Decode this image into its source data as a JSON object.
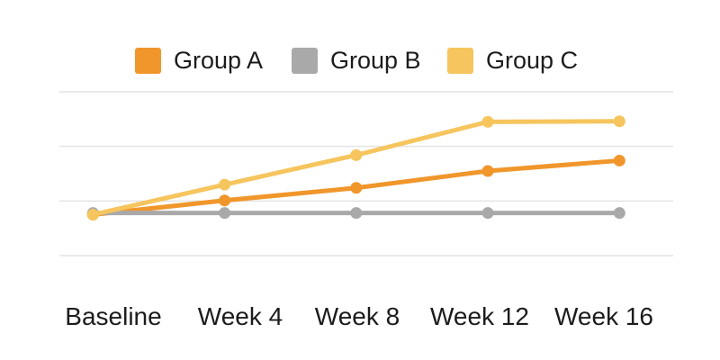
{
  "chart_data": {
    "type": "line",
    "title": "",
    "xlabel": "",
    "ylabel": "",
    "categories": [
      "Baseline",
      "Week 4",
      "Week 8",
      "Week 12",
      "Week 16"
    ],
    "series": [
      {
        "name": "Group A",
        "color": "#F0962B",
        "values": [
          7.5,
          10.1,
          12.4,
          15.5,
          17.4
        ]
      },
      {
        "name": "Group B",
        "color": "#A9A9A9",
        "values": [
          7.8,
          7.8,
          7.8,
          7.8,
          7.8
        ]
      },
      {
        "name": "Group C",
        "color": "#F6C55E",
        "values": [
          7.5,
          13.0,
          18.4,
          24.5,
          24.6
        ]
      }
    ],
    "ylim": [
      0,
      30
    ],
    "gridline_values": [
      0,
      10,
      20,
      30
    ],
    "grid": "horizontal-only",
    "y_axis_tick_labels_visible": false,
    "legend_position": "top"
  },
  "colors": {
    "background": "#FFFFFF",
    "gridline": "#E4E4E4",
    "label_text": "#1C1C1C"
  }
}
